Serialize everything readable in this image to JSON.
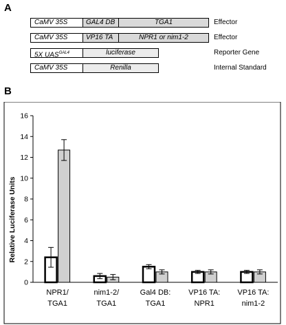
{
  "panel_a": {
    "letter": "A",
    "constructs": [
      {
        "segments": [
          "CaMV 35S",
          "GAL4 DB",
          "TGA1"
        ],
        "label": "Effector"
      },
      {
        "segments": [
          "CaMV 35S",
          "VP16 TA",
          "NPR1 or nim1-2"
        ],
        "label": "Effector"
      },
      {
        "segments": [
          "5X UAS",
          "luciferase"
        ],
        "superscript": "GAL4",
        "label": "Reporter Gene"
      },
      {
        "segments": [
          "CaMV 35S",
          "Renilla"
        ],
        "label": "Internal Standard"
      }
    ]
  },
  "panel_b": {
    "letter": "B"
  },
  "chart_data": {
    "type": "bar",
    "ylabel": "Relative Luciferase Units",
    "ylim": [
      0,
      16
    ],
    "yticks": [
      0,
      2,
      4,
      6,
      8,
      10,
      12,
      14,
      16
    ],
    "categories": [
      [
        "NPR1/",
        "TGA1"
      ],
      [
        "nim1-2/",
        "TGA1"
      ],
      [
        "Gal4 DB:",
        "TGA1"
      ],
      [
        "VP16 TA:",
        "NPR1"
      ],
      [
        "VP16 TA:",
        "nim1-2"
      ]
    ],
    "series": [
      {
        "fill": "#ffffff",
        "values": [
          2.4,
          0.6,
          1.5,
          1.0,
          1.0
        ],
        "errors": [
          0.95,
          0.25,
          0.2,
          0.15,
          0.15
        ]
      },
      {
        "fill": "#d0d0d0",
        "values": [
          12.7,
          0.5,
          1.0,
          1.0,
          1.0
        ],
        "errors": [
          1.0,
          0.25,
          0.2,
          0.2,
          0.2
        ]
      }
    ]
  }
}
